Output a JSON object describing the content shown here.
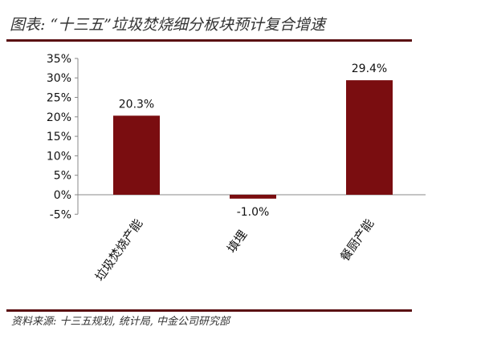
{
  "title": "图表: “十三五”垃圾焚烧细分板块预计复合增速",
  "source": "资料来源: 十三五规划, 统计局, 中金公司研究部",
  "colors": {
    "bar": "#7a0d10",
    "rule": "#5a0e12"
  },
  "chart_data": {
    "type": "bar",
    "categories": [
      "垃圾焚烧产能",
      "填埋",
      "餐厨产能"
    ],
    "values": [
      20.3,
      -1.0,
      29.4
    ],
    "data_labels": [
      "20.3%",
      "-1.0%",
      "29.4%"
    ],
    "ylim": [
      -5,
      35
    ],
    "yticks": [
      35,
      30,
      25,
      20,
      15,
      10,
      5,
      0,
      -5
    ],
    "ytick_labels": [
      "35%",
      "30%",
      "25%",
      "20%",
      "15%",
      "10%",
      "5%",
      "0%",
      "-5%"
    ],
    "grid": false,
    "legend": "none"
  }
}
